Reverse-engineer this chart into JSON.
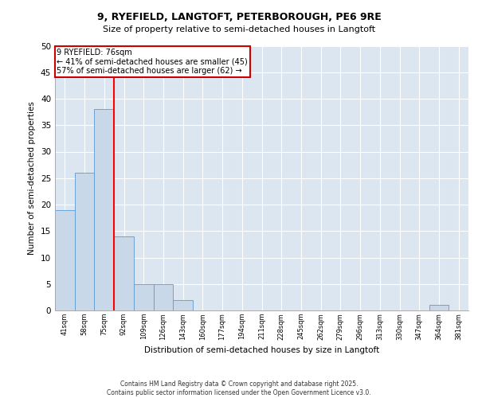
{
  "title1": "9, RYEFIELD, LANGTOFT, PETERBOROUGH, PE6 9RE",
  "title2": "Size of property relative to semi-detached houses in Langtoft",
  "xlabel": "Distribution of semi-detached houses by size in Langtoft",
  "ylabel": "Number of semi-detached properties",
  "categories": [
    "41sqm",
    "58sqm",
    "75sqm",
    "92sqm",
    "109sqm",
    "126sqm",
    "143sqm",
    "160sqm",
    "177sqm",
    "194sqm",
    "211sqm",
    "228sqm",
    "245sqm",
    "262sqm",
    "279sqm",
    "296sqm",
    "313sqm",
    "330sqm",
    "347sqm",
    "364sqm",
    "381sqm"
  ],
  "values": [
    19,
    26,
    38,
    14,
    5,
    5,
    2,
    0,
    0,
    0,
    0,
    0,
    0,
    0,
    0,
    0,
    0,
    0,
    0,
    1,
    0
  ],
  "bar_color": "#c8d8e8",
  "bar_edge_color": "#5b9bd5",
  "subject_line_index": 2,
  "subject_label": "9 RYEFIELD: 76sqm",
  "annotation_line1": "← 41% of semi-detached houses are smaller (45)",
  "annotation_line2": "57% of semi-detached houses are larger (62) →",
  "annotation_box_color": "#cc0000",
  "ylim": [
    0,
    50
  ],
  "yticks": [
    0,
    5,
    10,
    15,
    20,
    25,
    30,
    35,
    40,
    45,
    50
  ],
  "bg_color": "#dce6f1",
  "footer1": "Contains HM Land Registry data © Crown copyright and database right 2025.",
  "footer2": "Contains public sector information licensed under the Open Government Licence v3.0."
}
